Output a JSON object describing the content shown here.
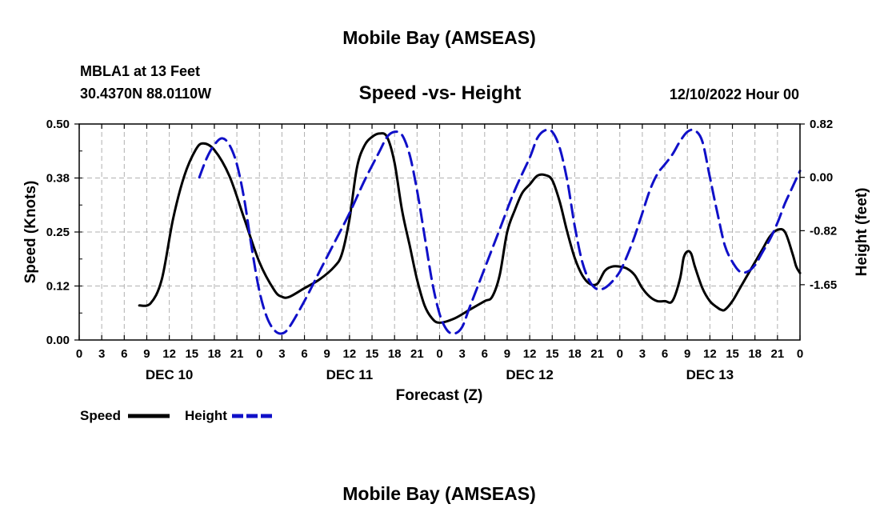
{
  "page": {
    "title_top": "Mobile Bay (AMSEAS)",
    "station": "MBLA1 at 13 Feet",
    "coordinates": "30.4370N  88.0110W",
    "timestamp": "12/10/2022 Hour 00",
    "title_bottom": "Mobile Bay (AMSEAS)"
  },
  "colors": {
    "speed": "#000000",
    "height": "#1010c8",
    "grid": "#b0b0b0"
  },
  "chart_data": {
    "type": "line",
    "title": "Speed -vs- Height",
    "xlabel": "Forecast (Z)",
    "ylabel": "Speed (Knots)",
    "y2label": "Height (feet)",
    "xlim": [
      0,
      96
    ],
    "ylim": [
      0,
      0.5
    ],
    "y2lim": [
      -2.5,
      0.82
    ],
    "yticks": [
      0.0,
      0.125,
      0.25,
      0.375,
      0.5
    ],
    "ytick_labels": [
      "0.00",
      "0.12",
      "0.25",
      "0.38",
      "0.50"
    ],
    "y2ticks": [
      0.82,
      0.0,
      -0.82,
      -1.65
    ],
    "y2tick_labels": [
      "0.82",
      "0.00",
      "-0.82",
      "-1.65"
    ],
    "xticks": [
      0,
      3,
      6,
      9,
      12,
      15,
      18,
      21,
      24,
      27,
      30,
      33,
      36,
      39,
      42,
      45,
      48,
      51,
      54,
      57,
      60,
      63,
      66,
      69,
      72,
      75,
      78,
      81,
      84,
      87,
      90,
      93,
      96
    ],
    "xtick_labels": [
      "0",
      "3",
      "6",
      "9",
      "12",
      "15",
      "18",
      "21",
      "0",
      "3",
      "6",
      "9",
      "12",
      "15",
      "18",
      "21",
      "0",
      "3",
      "6",
      "9",
      "12",
      "15",
      "18",
      "21",
      "0",
      "3",
      "6",
      "9",
      "12",
      "15",
      "18",
      "21",
      "0"
    ],
    "day_labels": [
      {
        "x": 12,
        "label": "DEC 10"
      },
      {
        "x": 36,
        "label": "DEC 11"
      },
      {
        "x": 60,
        "label": "DEC 12"
      },
      {
        "x": 84,
        "label": "DEC 13"
      }
    ],
    "series": [
      {
        "name": "Speed",
        "axis": "left",
        "style": "solid",
        "points": [
          [
            0,
            0.08
          ],
          [
            1.5,
            0.085
          ],
          [
            3,
            0.14
          ],
          [
            4.5,
            0.28
          ],
          [
            6,
            0.38
          ],
          [
            7.5,
            0.44
          ],
          [
            8.5,
            0.455
          ],
          [
            10,
            0.44
          ],
          [
            12,
            0.38
          ],
          [
            14,
            0.28
          ],
          [
            16,
            0.18
          ],
          [
            18,
            0.115
          ],
          [
            19,
            0.1
          ],
          [
            20,
            0.1
          ],
          [
            22,
            0.12
          ],
          [
            24,
            0.14
          ],
          [
            26,
            0.17
          ],
          [
            27,
            0.2
          ],
          [
            28,
            0.28
          ],
          [
            29,
            0.4
          ],
          [
            30,
            0.45
          ],
          [
            31,
            0.47
          ],
          [
            32,
            0.478
          ],
          [
            33,
            0.47
          ],
          [
            34,
            0.41
          ],
          [
            35,
            0.3
          ],
          [
            36,
            0.22
          ],
          [
            37,
            0.14
          ],
          [
            38,
            0.08
          ],
          [
            39,
            0.05
          ],
          [
            40,
            0.04
          ],
          [
            42,
            0.05
          ],
          [
            44,
            0.07
          ],
          [
            46,
            0.09
          ],
          [
            47,
            0.1
          ],
          [
            48,
            0.15
          ],
          [
            49,
            0.25
          ],
          [
            50,
            0.3
          ],
          [
            51,
            0.34
          ],
          [
            52,
            0.36
          ],
          [
            53,
            0.38
          ],
          [
            54,
            0.382
          ],
          [
            55,
            0.37
          ],
          [
            56,
            0.32
          ],
          [
            57,
            0.25
          ],
          [
            58,
            0.19
          ],
          [
            59,
            0.15
          ],
          [
            60,
            0.13
          ],
          [
            61,
            0.13
          ],
          [
            62,
            0.16
          ],
          [
            63,
            0.17
          ],
          [
            64,
            0.17
          ],
          [
            65,
            0.165
          ],
          [
            66,
            0.15
          ],
          [
            67,
            0.12
          ],
          [
            68,
            0.1
          ],
          [
            69,
            0.09
          ],
          [
            70,
            0.09
          ],
          [
            71,
            0.09
          ],
          [
            72,
            0.14
          ],
          [
            72.5,
            0.19
          ],
          [
            73,
            0.205
          ],
          [
            73.5,
            0.2
          ],
          [
            74,
            0.17
          ],
          [
            75,
            0.12
          ],
          [
            76,
            0.09
          ],
          [
            77,
            0.075
          ],
          [
            77.5,
            0.07
          ],
          [
            78,
            0.07
          ],
          [
            79,
            0.09
          ],
          [
            80,
            0.12
          ],
          [
            81,
            0.15
          ],
          [
            82,
            0.18
          ],
          [
            83,
            0.21
          ],
          [
            84,
            0.24
          ],
          [
            85,
            0.255
          ],
          [
            86,
            0.25
          ],
          [
            87,
            0.2
          ],
          [
            87.5,
            0.17
          ],
          [
            88,
            0.155
          ]
        ],
        "x_offset_hours": 8
      },
      {
        "name": "Height",
        "axis": "right",
        "style": "dashed",
        "points": [
          [
            0,
            0.0
          ],
          [
            1,
            0.3
          ],
          [
            2,
            0.5
          ],
          [
            3,
            0.6
          ],
          [
            4,
            0.5
          ],
          [
            5,
            0.2
          ],
          [
            6,
            -0.35
          ],
          [
            7,
            -1.1
          ],
          [
            8,
            -1.75
          ],
          [
            9,
            -2.15
          ],
          [
            10,
            -2.35
          ],
          [
            11,
            -2.4
          ],
          [
            12,
            -2.3
          ],
          [
            14,
            -1.9
          ],
          [
            16,
            -1.45
          ],
          [
            18,
            -1.0
          ],
          [
            20,
            -0.55
          ],
          [
            22,
            -0.05
          ],
          [
            24,
            0.4
          ],
          [
            25,
            0.62
          ],
          [
            26,
            0.7
          ],
          [
            27,
            0.65
          ],
          [
            28,
            0.35
          ],
          [
            29,
            -0.2
          ],
          [
            30,
            -0.9
          ],
          [
            31,
            -1.6
          ],
          [
            32,
            -2.1
          ],
          [
            33,
            -2.35
          ],
          [
            34,
            -2.4
          ],
          [
            35,
            -2.3
          ],
          [
            36,
            -2.0
          ],
          [
            38,
            -1.4
          ],
          [
            40,
            -0.8
          ],
          [
            42,
            -0.2
          ],
          [
            44,
            0.3
          ],
          [
            45,
            0.6
          ],
          [
            46,
            0.72
          ],
          [
            47,
            0.7
          ],
          [
            48,
            0.45
          ],
          [
            49,
            -0.05
          ],
          [
            50,
            -0.75
          ],
          [
            51,
            -1.3
          ],
          [
            52,
            -1.6
          ],
          [
            53,
            -1.72
          ],
          [
            54,
            -1.7
          ],
          [
            55,
            -1.6
          ],
          [
            56,
            -1.45
          ],
          [
            57,
            -1.2
          ],
          [
            58,
            -0.9
          ],
          [
            59,
            -0.55
          ],
          [
            60,
            -0.2
          ],
          [
            61,
            0.05
          ],
          [
            62,
            0.2
          ],
          [
            63,
            0.35
          ],
          [
            64,
            0.55
          ],
          [
            65,
            0.7
          ],
          [
            66,
            0.72
          ],
          [
            67,
            0.55
          ],
          [
            68,
            0.0
          ],
          [
            69,
            -0.55
          ],
          [
            70,
            -1.05
          ],
          [
            71,
            -1.3
          ],
          [
            72,
            -1.45
          ],
          [
            73,
            -1.45
          ],
          [
            74,
            -1.35
          ],
          [
            75,
            -1.15
          ],
          [
            76,
            -0.95
          ],
          [
            77,
            -0.7
          ],
          [
            78,
            -0.4
          ],
          [
            79,
            -0.15
          ],
          [
            80,
            0.1
          ]
        ],
        "x_offset_hours": 16
      }
    ],
    "legend": [
      {
        "label": "Speed",
        "style": "solid"
      },
      {
        "label": "Height",
        "style": "dashed"
      }
    ]
  }
}
